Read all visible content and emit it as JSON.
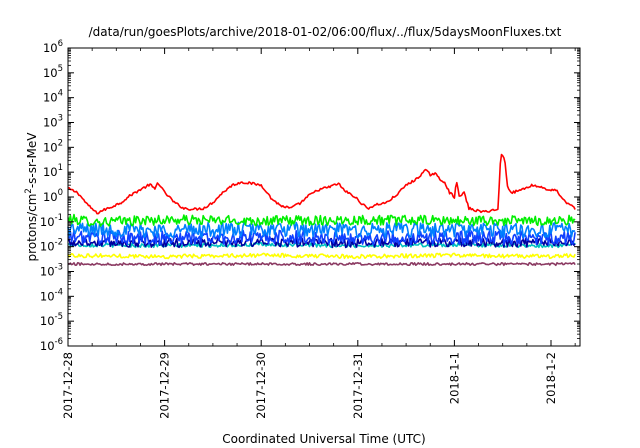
{
  "chart_data": {
    "type": "line",
    "title": "/data/run/goesPlots/archive/2018-01-02/06:00/flux/../flux/5daysMoonFluxes.txt",
    "xlabel": "Coordinated Universal Time (UTC)",
    "ylabel": {
      "base": "protons/cm",
      "sup": "2",
      "rest": "-s-sr-MeV"
    },
    "yscale": "log",
    "ylim_exponent": [
      -6,
      6
    ],
    "ytick_labels": [
      {
        "base": "10",
        "exp": "-6"
      },
      {
        "base": "10",
        "exp": "-5"
      },
      {
        "base": "10",
        "exp": "-4"
      },
      {
        "base": "10",
        "exp": "-3"
      },
      {
        "base": "10",
        "exp": "-2"
      },
      {
        "base": "10",
        "exp": "-1"
      },
      {
        "base": "10",
        "exp": "0"
      },
      {
        "base": "10",
        "exp": "1"
      },
      {
        "base": "10",
        "exp": "2"
      },
      {
        "base": "10",
        "exp": "3"
      },
      {
        "base": "10",
        "exp": "4"
      },
      {
        "base": "10",
        "exp": "5"
      },
      {
        "base": "10",
        "exp": "6"
      }
    ],
    "xlim": [
      "2017-12-28 00:00",
      "2018-01-02 06:00"
    ],
    "xtick_labels": [
      "2017-12-28",
      "2017-12-29",
      "2017-12-30",
      "2017-12-31",
      "2018-1-1",
      "2018-1-2"
    ],
    "grid": false,
    "series": [
      {
        "color": "#ff0000",
        "noise": 0.05,
        "points": [
          [
            0,
            2.2
          ],
          [
            0.1,
            1.5
          ],
          [
            0.2,
            0.5
          ],
          [
            0.3,
            0.22
          ],
          [
            0.35,
            0.28
          ],
          [
            0.45,
            0.4
          ],
          [
            0.55,
            0.6
          ],
          [
            0.65,
            1.2
          ],
          [
            0.75,
            2.0
          ],
          [
            0.85,
            3.2
          ],
          [
            0.9,
            2.0
          ],
          [
            0.93,
            4.0
          ],
          [
            1.0,
            1.5
          ],
          [
            1.05,
            1.0
          ],
          [
            1.1,
            0.6
          ],
          [
            1.2,
            0.35
          ],
          [
            1.3,
            0.32
          ],
          [
            1.4,
            0.35
          ],
          [
            1.5,
            0.6
          ],
          [
            1.6,
            1.5
          ],
          [
            1.7,
            3.0
          ],
          [
            1.8,
            4.0
          ],
          [
            1.9,
            3.5
          ],
          [
            2.0,
            3.0
          ],
          [
            2.05,
            1.8
          ],
          [
            2.1,
            0.9
          ],
          [
            2.2,
            0.45
          ],
          [
            2.3,
            0.35
          ],
          [
            2.4,
            0.55
          ],
          [
            2.5,
            1.2
          ],
          [
            2.6,
            2.0
          ],
          [
            2.7,
            2.5
          ],
          [
            2.8,
            3.5
          ],
          [
            2.85,
            2.0
          ],
          [
            2.9,
            1.5
          ],
          [
            3.0,
            0.8
          ],
          [
            3.05,
            0.5
          ],
          [
            3.1,
            0.35
          ],
          [
            3.2,
            0.5
          ],
          [
            3.3,
            0.6
          ],
          [
            3.4,
            1.2
          ],
          [
            3.5,
            3.0
          ],
          [
            3.6,
            5.0
          ],
          [
            3.7,
            12.0
          ],
          [
            3.75,
            8.0
          ],
          [
            3.8,
            9.0
          ],
          [
            3.85,
            5.0
          ],
          [
            3.9,
            4.0
          ],
          [
            3.95,
            1.5
          ],
          [
            4.0,
            1.0
          ],
          [
            4.02,
            5.0
          ],
          [
            4.05,
            1.0
          ],
          [
            4.1,
            1.5
          ],
          [
            4.15,
            0.35
          ],
          [
            4.2,
            0.3
          ],
          [
            4.3,
            0.25
          ],
          [
            4.4,
            0.3
          ],
          [
            4.45,
            0.3
          ],
          [
            4.48,
            50.0
          ],
          [
            4.52,
            40.0
          ],
          [
            4.55,
            2.5
          ],
          [
            4.6,
            1.5
          ],
          [
            4.7,
            2.0
          ],
          [
            4.8,
            3.0
          ],
          [
            4.9,
            2.5
          ],
          [
            5.0,
            1.8
          ],
          [
            5.05,
            2.0
          ],
          [
            5.1,
            1.0
          ],
          [
            5.15,
            0.6
          ],
          [
            5.2,
            0.5
          ],
          [
            5.25,
            0.35
          ]
        ]
      },
      {
        "color": "#00ee00",
        "noise": 0.2,
        "points": [
          [
            0,
            0.13
          ],
          [
            0.3,
            0.1
          ],
          [
            1.0,
            0.12
          ],
          [
            2.0,
            0.11
          ],
          [
            3.0,
            0.12
          ],
          [
            4.0,
            0.11
          ],
          [
            5.0,
            0.11
          ],
          [
            5.25,
            0.12
          ]
        ]
      },
      {
        "color": "#00c0c0",
        "noise": 0.08,
        "points": [
          [
            0,
            0.012
          ],
          [
            1.0,
            0.011
          ],
          [
            2.0,
            0.012
          ],
          [
            3.0,
            0.011
          ],
          [
            4.0,
            0.012
          ],
          [
            5.0,
            0.011
          ],
          [
            5.25,
            0.012
          ]
        ]
      },
      {
        "color": "#0080ff",
        "noise": 0.3,
        "points": [
          [
            0,
            0.05
          ],
          [
            1.0,
            0.045
          ],
          [
            2.0,
            0.05
          ],
          [
            3.0,
            0.045
          ],
          [
            4.0,
            0.05
          ],
          [
            5.0,
            0.045
          ],
          [
            5.25,
            0.05
          ]
        ]
      },
      {
        "color": "#1040ff",
        "noise": 0.28,
        "points": [
          [
            0,
            0.025
          ],
          [
            1.0,
            0.022
          ],
          [
            2.0,
            0.024
          ],
          [
            3.0,
            0.022
          ],
          [
            4.0,
            0.024
          ],
          [
            5.0,
            0.022
          ],
          [
            5.25,
            0.024
          ]
        ]
      },
      {
        "color": "#0000a0",
        "noise": 0.18,
        "points": [
          [
            0,
            0.015
          ],
          [
            1.0,
            0.014
          ],
          [
            2.0,
            0.015
          ],
          [
            3.0,
            0.014
          ],
          [
            4.0,
            0.015
          ],
          [
            5.0,
            0.014
          ],
          [
            5.25,
            0.015
          ]
        ]
      },
      {
        "color": "#ffff00",
        "noise": 0.08,
        "points": [
          [
            0,
            0.0045
          ],
          [
            1.0,
            0.004
          ],
          [
            2.0,
            0.0045
          ],
          [
            3.0,
            0.004
          ],
          [
            4.0,
            0.0045
          ],
          [
            5.0,
            0.004
          ],
          [
            5.25,
            0.0045
          ]
        ]
      },
      {
        "color": "#8b3a62",
        "noise": 0.05,
        "points": [
          [
            0,
            0.002
          ],
          [
            1.0,
            0.002
          ],
          [
            2.0,
            0.002
          ],
          [
            3.0,
            0.002
          ],
          [
            4.0,
            0.002
          ],
          [
            5.0,
            0.002
          ],
          [
            5.25,
            0.002
          ]
        ]
      }
    ]
  }
}
